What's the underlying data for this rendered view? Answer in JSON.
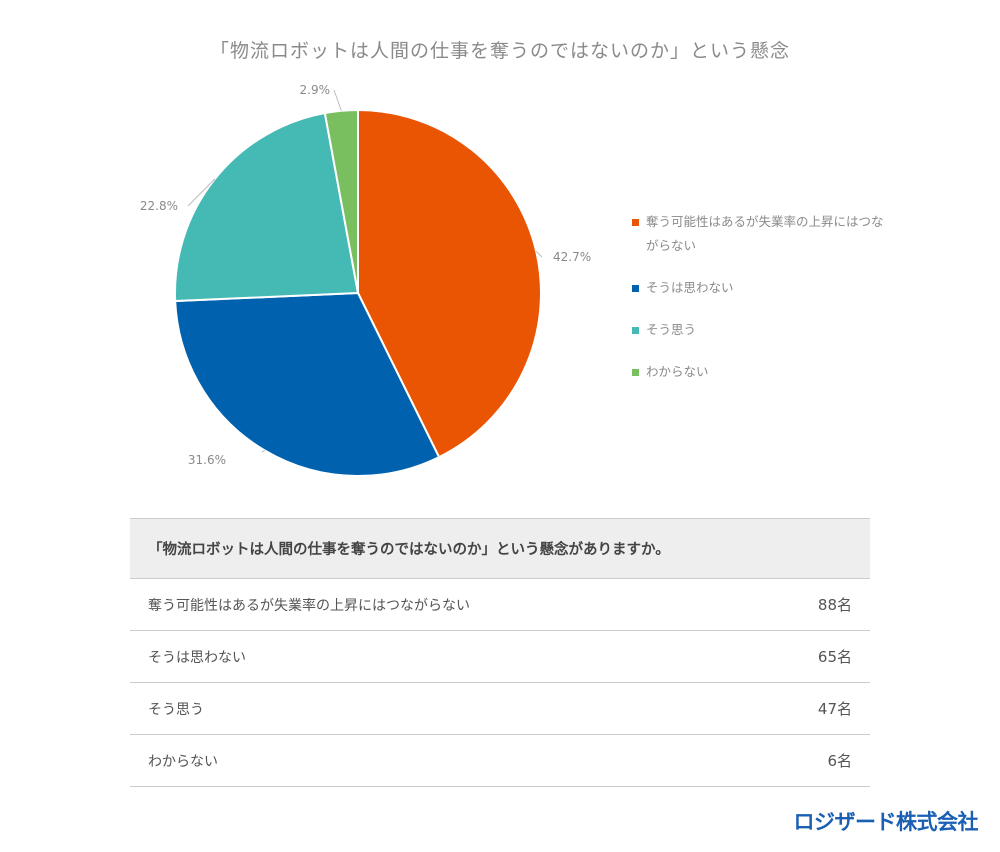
{
  "chart_data": {
    "type": "pie",
    "title": "「物流ロボットは人間の仕事を奪うのではないのか」という懸念",
    "categories": [
      "奪う可能性はあるが失業率の上昇にはつながらない",
      "そうは思わない",
      "そう思う",
      "わからない"
    ],
    "values": [
      42.7,
      31.6,
      22.8,
      2.9
    ],
    "data_labels": [
      "42.7%",
      "31.6%",
      "22.8%",
      "2.9%"
    ],
    "colors": [
      "#ea5504",
      "#0062ae",
      "#45bab5",
      "#7abf5f"
    ],
    "legend_position": "right",
    "start_angle": "top, clockwise"
  },
  "table": {
    "header": "「物流ロボットは人間の仕事を奪うのではないのか」という懸念がありますか。",
    "rows": [
      {
        "label": "奪う可能性はあるが失業率の上昇にはつながらない",
        "count": "88名"
      },
      {
        "label": "そうは思わない",
        "count": "65名"
      },
      {
        "label": "そう思う",
        "count": "47名"
      },
      {
        "label": "わからない",
        "count": "6名"
      }
    ]
  },
  "logo": "ロジザード株式会社"
}
